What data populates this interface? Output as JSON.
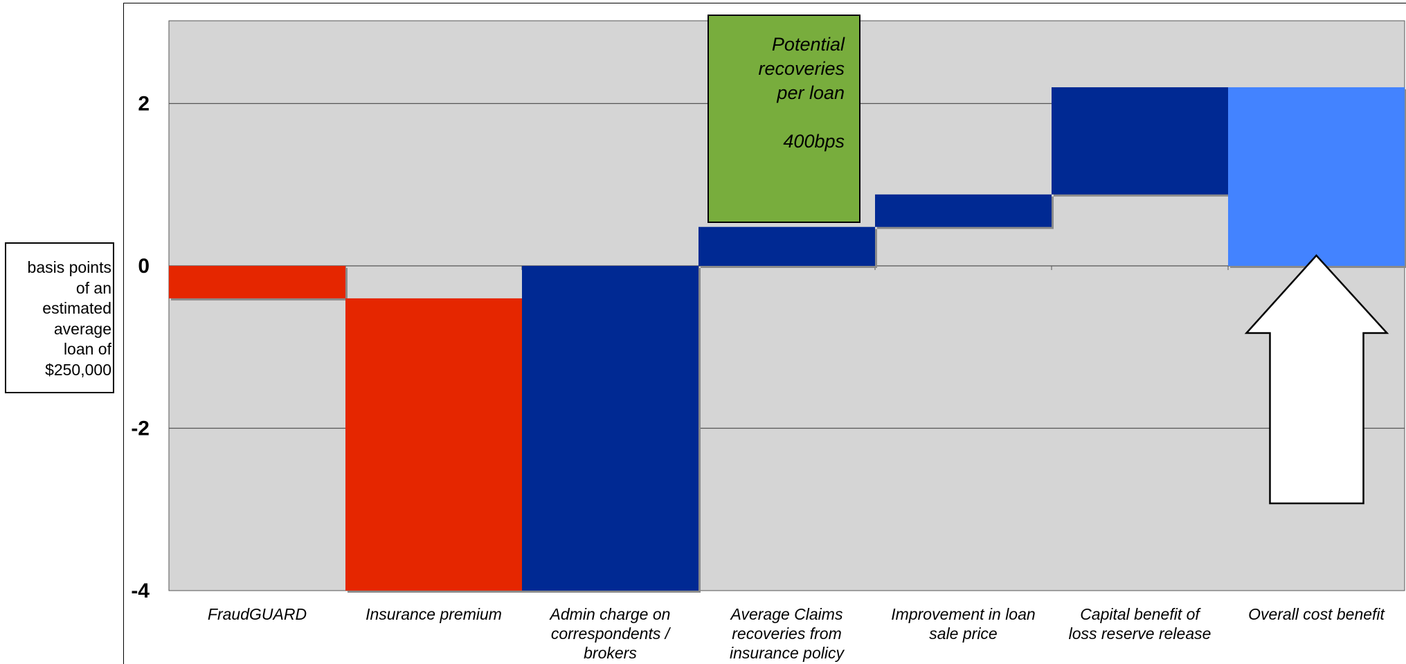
{
  "chart_data": {
    "type": "bar",
    "subtype": "waterfall",
    "ylabel": "basis points\nof an\nestimated\naverage\nloan of\n$250,000",
    "ylim": [
      -4,
      3
    ],
    "yticks": [
      -4,
      -2,
      0,
      2
    ],
    "grid": true,
    "categories": [
      [
        "FraudGUARD"
      ],
      [
        "Insurance premium"
      ],
      [
        "Admin charge on",
        "correspondents /",
        "brokers"
      ],
      [
        "Average Claims",
        "recoveries from",
        "insurance policy"
      ],
      [
        "Improvement in loan",
        "sale price"
      ],
      [
        "Capital benefit of",
        "loss reserve release"
      ],
      [
        "Overall cost benefit"
      ]
    ],
    "bars": [
      {
        "start": 0,
        "end": -0.4,
        "color": "#e52600"
      },
      {
        "start": -0.4,
        "end": -4.0,
        "color": "#e52600"
      },
      {
        "start": -4.0,
        "end": 0,
        "color": "#002993"
      },
      {
        "start": 0,
        "end": 0.48,
        "color": "#002993"
      },
      {
        "start": 0.48,
        "end": 0.88,
        "color": "#002993"
      },
      {
        "start": 0.88,
        "end": 2.2,
        "color": "#002993"
      },
      {
        "start": 0,
        "end": 2.2,
        "color": "#4383ff"
      }
    ],
    "annotation": {
      "lines": [
        "Potential",
        "recoveries",
        "per loan",
        "",
        "400bps"
      ],
      "color": "#78ad3d"
    },
    "colors": {
      "plot_background": "#d5d5d5",
      "cost": "#e52600",
      "benefit": "#002993",
      "total": "#4383ff"
    }
  }
}
